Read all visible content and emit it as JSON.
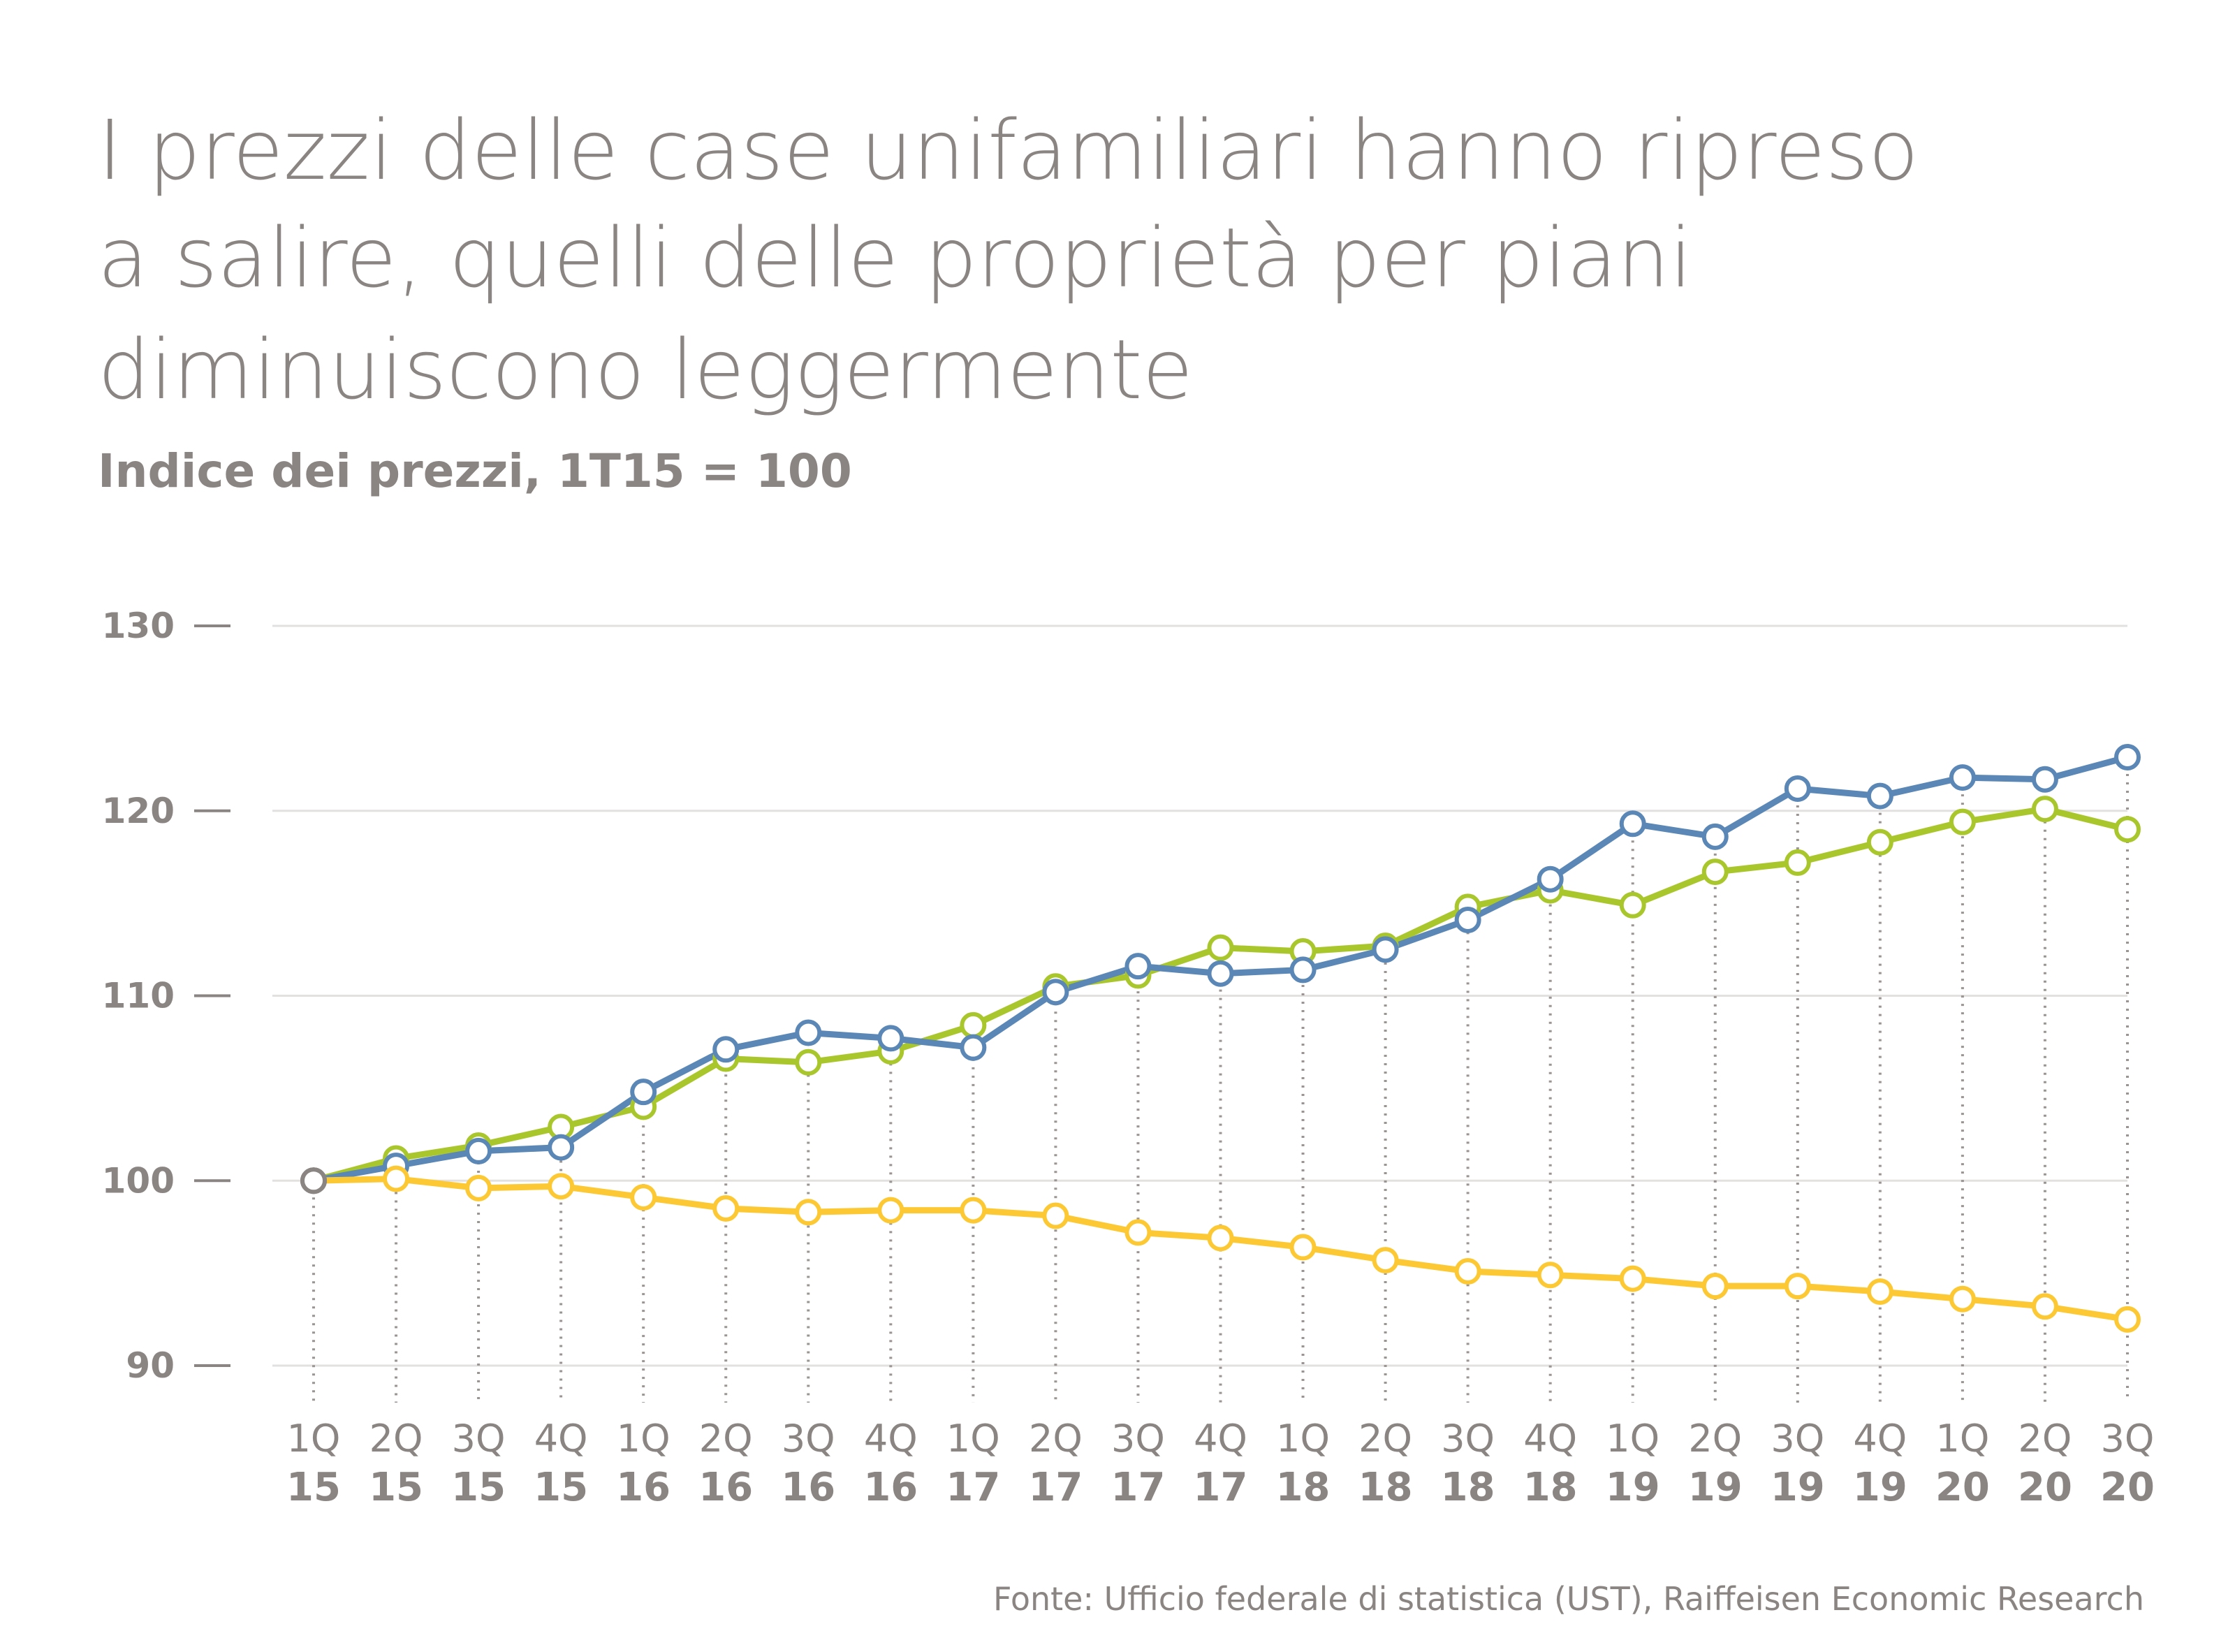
{
  "title_lines": [
    "I prezzi delle case unifamiliari hanno ripreso",
    "a salire, quelli delle proprietà per piani",
    "diminuiscono leggermente"
  ],
  "subtitle": "Indice dei prezzi, 1T15 = 100",
  "source": "Fonte: Ufficio federale di statistica (UST), Raiffeisen Economic Research",
  "chart_data": {
    "type": "line",
    "title": "I prezzi delle case unifamiliari hanno ripreso a salire, quelli delle proprietà per piani diminuiscono leggermente",
    "ylabel": "Indice dei prezzi, 1T15 = 100",
    "ylim": [
      90,
      130
    ],
    "yticks": [
      90,
      100,
      110,
      120,
      130
    ],
    "grid": true,
    "x_quarters": [
      "1Q",
      "2Q",
      "3Q",
      "4Q",
      "1Q",
      "2Q",
      "3Q",
      "4Q",
      "1Q",
      "2Q",
      "3Q",
      "4Q",
      "1Q",
      "2Q",
      "3Q",
      "4Q",
      "1Q",
      "2Q",
      "3Q",
      "4Q",
      "1Q",
      "2Q",
      "3Q"
    ],
    "x_years": [
      "15",
      "15",
      "15",
      "15",
      "16",
      "16",
      "16",
      "16",
      "17",
      "17",
      "17",
      "17",
      "18",
      "18",
      "18",
      "18",
      "19",
      "19",
      "19",
      "19",
      "20",
      "20",
      "20"
    ],
    "series": [
      {
        "name": "series-green",
        "color": "#a9c72d",
        "values": [
          100,
          101.2,
          101.9,
          102.9,
          104.0,
          106.6,
          106.4,
          107.0,
          108.4,
          110.5,
          111.1,
          112.6,
          112.4,
          112.7,
          114.8,
          115.7,
          114.9,
          116.7,
          117.2,
          118.3,
          119.4,
          120.1,
          119.0
        ]
      },
      {
        "name": "series-blue",
        "color": "#5a87b6",
        "values": [
          100,
          100.8,
          101.6,
          101.8,
          104.8,
          107.1,
          108.0,
          107.7,
          107.2,
          110.2,
          111.6,
          111.2,
          111.4,
          112.5,
          114.1,
          116.3,
          119.3,
          118.6,
          121.2,
          120.8,
          121.8,
          121.7,
          122.9
        ]
      },
      {
        "name": "series-yellow",
        "color": "#fcc934",
        "values": [
          100,
          100.1,
          99.6,
          99.7,
          99.1,
          98.5,
          98.3,
          98.4,
          98.4,
          98.1,
          97.2,
          96.9,
          96.4,
          95.7,
          95.1,
          94.9,
          94.7,
          94.3,
          94.3,
          94.0,
          93.6,
          93.2,
          92.5
        ]
      }
    ]
  }
}
